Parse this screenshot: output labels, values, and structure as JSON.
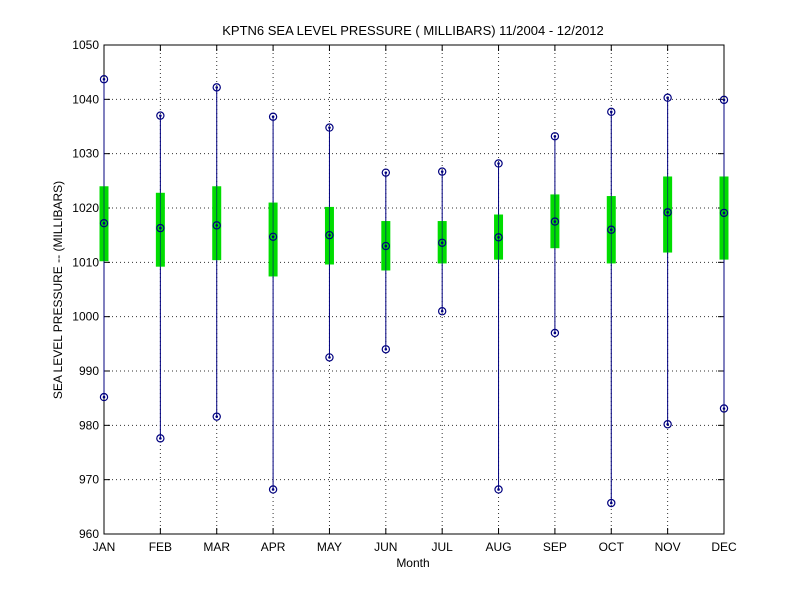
{
  "chart_data": {
    "type": "box",
    "title": "KPTN6  SEA LEVEL PRESSURE ( MILLIBARS) 11/2004 - 12/2012",
    "xlabel": "Month",
    "ylabel": "SEA LEVEL PRESSURE -- (MILLIBARS)",
    "ylim": [
      960,
      1050
    ],
    "yticks": [
      960,
      970,
      980,
      990,
      1000,
      1010,
      1020,
      1030,
      1040,
      1050
    ],
    "grid": true,
    "categories": [
      "JAN",
      "FEB",
      "MAR",
      "APR",
      "MAY",
      "JUN",
      "JUL",
      "AUG",
      "SEP",
      "OCT",
      "NOV",
      "DEC"
    ],
    "max": [
      1043.7,
      1037.0,
      1042.2,
      1036.8,
      1034.8,
      1026.5,
      1026.7,
      1028.2,
      1033.2,
      1037.7,
      1040.3,
      1039.9
    ],
    "min": [
      985.2,
      977.6,
      981.6,
      968.2,
      992.5,
      994.0,
      1001.0,
      968.2,
      997.0,
      965.7,
      980.2,
      983.1
    ],
    "mean": [
      1017.2,
      1016.3,
      1016.8,
      1014.7,
      1015.0,
      1013.0,
      1013.6,
      1014.6,
      1017.5,
      1016.0,
      1019.2,
      1019.1
    ],
    "box_upper": [
      1024.0,
      1022.8,
      1024.0,
      1021.0,
      1020.2,
      1017.6,
      1017.6,
      1018.8,
      1022.5,
      1022.2,
      1025.8,
      1025.8
    ],
    "box_lower": [
      1010.2,
      1009.2,
      1010.4,
      1007.4,
      1009.6,
      1008.5,
      1009.8,
      1010.5,
      1012.6,
      1009.8,
      1011.8,
      1010.5
    ],
    "colors": {
      "whisker": "#00007f",
      "box": "#00dd00",
      "marker": "#00007f",
      "axis": "#000000"
    }
  }
}
